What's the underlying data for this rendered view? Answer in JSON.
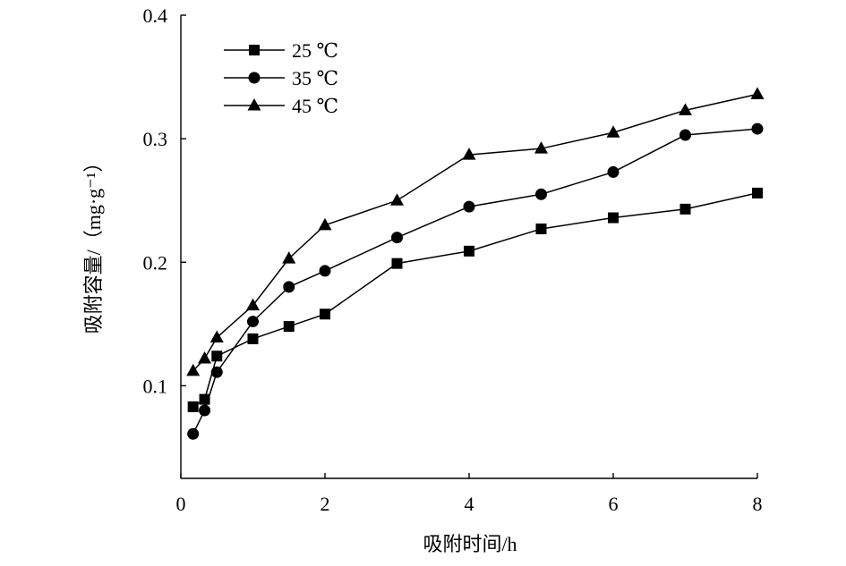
{
  "chart_data": {
    "type": "line",
    "title": "",
    "xlabel": "吸附时间/h",
    "ylabel": "吸附容量/（mg·g⁻¹）",
    "xlim": [
      0,
      8
    ],
    "ylim": [
      0.025,
      0.4
    ],
    "xticks": [
      0,
      2,
      4,
      6,
      8
    ],
    "xtick_labels": [
      "0",
      "2",
      "4",
      "6",
      "8"
    ],
    "yticks": [
      0.1,
      0.2,
      0.3,
      0.4
    ],
    "ytick_labels": [
      "0.1",
      "0.2",
      "0.3",
      "0.4"
    ],
    "grid": false,
    "legend": "top-left",
    "x": [
      0.17,
      0.33,
      0.5,
      1,
      1.5,
      2,
      3,
      4,
      5,
      6,
      7,
      8
    ],
    "series": [
      {
        "name": "25 ℃",
        "marker": "square",
        "color": "#000000",
        "values": [
          0.083,
          0.089,
          0.124,
          0.138,
          0.148,
          0.158,
          0.199,
          0.209,
          0.227,
          0.236,
          0.243,
          0.256
        ]
      },
      {
        "name": "35 ℃",
        "marker": "circle",
        "color": "#000000",
        "values": [
          0.061,
          0.08,
          0.111,
          0.152,
          0.18,
          0.193,
          0.22,
          0.245,
          0.255,
          0.273,
          0.303,
          0.308
        ]
      },
      {
        "name": "45 ℃",
        "marker": "triangle",
        "color": "#000000",
        "values": [
          0.112,
          0.122,
          0.139,
          0.165,
          0.203,
          0.23,
          0.25,
          0.287,
          0.292,
          0.305,
          0.323,
          0.336
        ]
      }
    ]
  }
}
